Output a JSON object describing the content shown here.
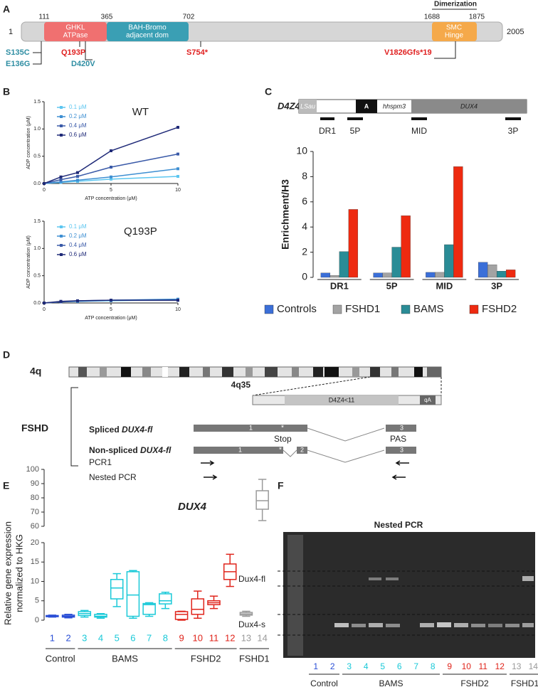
{
  "panels": [
    "A",
    "B",
    "C",
    "D",
    "E",
    "F"
  ],
  "protein": {
    "start": "1",
    "end": "2005",
    "positions": [
      "111",
      "365",
      "702",
      "1688",
      "1875"
    ],
    "dimerization": "Dimerization",
    "domains": [
      [
        "GHKL",
        "ATPase"
      ],
      [
        "BAH-Bromo",
        "adjacent dom"
      ],
      [
        "SMC",
        "Hinge"
      ]
    ],
    "mutations": [
      "S135C",
      "E136G",
      "Q193P",
      "D420V",
      "S754*",
      "V1826Gfs*19"
    ]
  },
  "d4z4": {
    "title": "D4Z4",
    "blocks": [
      "LSau",
      "A",
      "hhspm3",
      "DUX4"
    ],
    "probes": [
      "DR1",
      "5P",
      "MID",
      "3P"
    ]
  },
  "locus": {
    "chromosome": "4q",
    "band": "4q35",
    "repeat": "D4Z4<11",
    "allele": "qA",
    "condition": "FSHD",
    "spliced": [
      "Spliced",
      "DUX4-fl"
    ],
    "nonspliced": [
      "Non-spliced",
      "DUX4-fl"
    ],
    "exons": [
      "1",
      "*",
      "3",
      "1",
      "*",
      "2",
      "3"
    ],
    "stop": "Stop",
    "pas": "PAS",
    "pcr1": "PCR1",
    "nested": "Nested PCR"
  },
  "gel": {
    "title": "Nested PCR",
    "bands": [
      "Dux4-fl",
      "Dux4-s"
    ],
    "lanes": [
      "1",
      "2",
      "3",
      "4",
      "5",
      "6",
      "7",
      "8",
      "9",
      "10",
      "11",
      "12",
      "13",
      "14"
    ],
    "lane_colors": [
      "#2a4fd6",
      "#2a4fd6",
      "#19c9d8",
      "#19c9d8",
      "#19c9d8",
      "#19c9d8",
      "#19c9d8",
      "#19c9d8",
      "#e0241b",
      "#e0241b",
      "#e0241b",
      "#e0241b",
      "#9a9a9a",
      "#9a9a9a"
    ],
    "groups": [
      "Control",
      "BAMS",
      "FSHD2",
      "FSHD1"
    ]
  },
  "chart_data": [
    {
      "type": "line",
      "title": "WT",
      "xlabel": "ATP concentration (μM)",
      "ylabel": "ADP concentration (μM)",
      "legend": "upper left",
      "x": [
        0,
        1.25,
        2.5,
        5,
        10
      ],
      "xlim": [
        0,
        10
      ],
      "xticks": [
        0,
        5,
        10
      ],
      "ylim": [
        0,
        1.5
      ],
      "yticks": [
        {
          "value": 0,
          "label": "0.0"
        },
        {
          "value": 0.5,
          "label": "0.5"
        },
        {
          "value": 1,
          "label": "1.0"
        },
        {
          "value": 1.5,
          "label": "1.5"
        }
      ],
      "series": [
        {
          "name": "0.1 μM",
          "color": "#5cc6f0",
          "values": [
            0,
            0.02,
            0.04,
            0.08,
            0.13
          ]
        },
        {
          "name": "0.2 μM",
          "color": "#3e8fd2",
          "values": [
            0,
            0.03,
            0.06,
            0.12,
            0.27
          ]
        },
        {
          "name": "0.4 μM",
          "color": "#3a5aa8",
          "values": [
            0,
            0.07,
            0.13,
            0.3,
            0.54
          ]
        },
        {
          "name": "0.6 μM",
          "color": "#1f2a78",
          "values": [
            0,
            0.12,
            0.2,
            0.6,
            1.03
          ]
        }
      ]
    },
    {
      "type": "line",
      "title": "Q193P",
      "xlabel": "ATP concentration (μM)",
      "ylabel": "ADP concentration (μM)",
      "legend": "upper left",
      "x": [
        0,
        1.25,
        2.5,
        5,
        10
      ],
      "xlim": [
        0,
        10
      ],
      "xticks": [
        0,
        5,
        10
      ],
      "ylim": [
        0,
        1.5
      ],
      "yticks": [
        {
          "value": 0,
          "label": "0.0"
        },
        {
          "value": 0.5,
          "label": "0.5"
        },
        {
          "value": 1,
          "label": "1.0"
        },
        {
          "value": 1.5,
          "label": "1.5"
        }
      ],
      "series": [
        {
          "name": "0.1 μM",
          "color": "#5cc6f0",
          "values": [
            0,
            0.02,
            0.03,
            0.04,
            0.06
          ]
        },
        {
          "name": "0.2 μM",
          "color": "#3e8fd2",
          "values": [
            0,
            0.02,
            0.03,
            0.05,
            0.07
          ]
        },
        {
          "name": "0.4 μM",
          "color": "#3a5aa8",
          "values": [
            0,
            0.02,
            0.04,
            0.05,
            0.05
          ]
        },
        {
          "name": "0.6 μM",
          "color": "#1f2a78",
          "values": [
            0,
            0.03,
            0.04,
            0.05,
            0.05
          ]
        }
      ]
    },
    {
      "type": "bar",
      "ylabel": "Enrichment/H3",
      "categories": [
        "DR1",
        "5P",
        "MID",
        "3P"
      ],
      "ylim": [
        0,
        10
      ],
      "yticks": [
        0,
        2,
        4,
        6,
        8,
        10
      ],
      "legend": "bottom",
      "series": [
        {
          "name": "Controls",
          "color": "#3b6fd8",
          "values": [
            0.35,
            0.35,
            0.4,
            1.2
          ]
        },
        {
          "name": "FSHD1",
          "color": "#a3a3a3",
          "values": [
            0.15,
            0.35,
            0.4,
            1.0
          ]
        },
        {
          "name": "BAMS",
          "color": "#2a8c96",
          "values": [
            2.05,
            2.4,
            2.6,
            0.5
          ]
        },
        {
          "name": "FSHD2",
          "color": "#ee2a10",
          "values": [
            5.4,
            4.9,
            8.8,
            0.6
          ]
        }
      ]
    },
    {
      "type": "box",
      "title": "DUX4",
      "ylabel": [
        "Relative gene expression",
        "normalized to HKG"
      ],
      "categories": [
        "1",
        "2",
        "3",
        "4",
        "5",
        "6",
        "7",
        "8",
        "9",
        "10",
        "11",
        "12",
        "13",
        "14"
      ],
      "colors": [
        "#2a4fd6",
        "#2a4fd6",
        "#19c9d8",
        "#19c9d8",
        "#19c9d8",
        "#19c9d8",
        "#19c9d8",
        "#19c9d8",
        "#e0241b",
        "#e0241b",
        "#e0241b",
        "#e0241b",
        "#9a9a9a",
        "#9a9a9a"
      ],
      "groups": [
        "Control",
        "BAMS",
        "FSHD2",
        "FSHD1"
      ],
      "ylim": [
        0,
        100
      ],
      "axis_break": [
        20,
        60
      ],
      "yticks": [
        0,
        5,
        10,
        15,
        20,
        60,
        70,
        80,
        90,
        100
      ],
      "values": [
        {
          "min": 0.8,
          "q1": 0.9,
          "median": 1.0,
          "q3": 1.2,
          "max": 1.3
        },
        {
          "min": 0.6,
          "q1": 0.8,
          "median": 1.0,
          "q3": 1.3,
          "max": 1.5
        },
        {
          "min": 0.8,
          "q1": 1.2,
          "median": 1.7,
          "q3": 2.2,
          "max": 2.5
        },
        {
          "min": 0.5,
          "q1": 0.8,
          "median": 1.0,
          "q3": 1.5,
          "max": 1.7
        },
        {
          "min": 3.5,
          "q1": 5.5,
          "median": 8.3,
          "q3": 10.5,
          "max": 12
        },
        {
          "min": 0.5,
          "q1": 1.0,
          "median": 6.5,
          "q3": 12.5,
          "max": 12.8
        },
        {
          "min": 1.0,
          "q1": 1.5,
          "median": 4.0,
          "q3": 4.3,
          "max": 4.5
        },
        {
          "min": 3.0,
          "q1": 4.2,
          "median": 5.0,
          "q3": 6.8,
          "max": 7.2
        },
        {
          "min": 0,
          "q1": 0.2,
          "median": 1.5,
          "q3": 2.2,
          "max": 2.3
        },
        {
          "min": 0.5,
          "q1": 1.5,
          "median": 2.8,
          "q3": 5.5,
          "max": 7.5
        },
        {
          "min": 3.0,
          "q1": 4.0,
          "median": 4.5,
          "q3": 5.0,
          "max": 6.2
        },
        {
          "min": 8.7,
          "q1": 10.5,
          "median": 12.5,
          "q3": 14.5,
          "max": 17
        },
        {
          "min": 1.0,
          "q1": 1.3,
          "median": 1.6,
          "q3": 2.0,
          "max": 2.3
        },
        {
          "min": 64,
          "q1": 72,
          "median": 78,
          "q3": 85,
          "max": 93
        }
      ]
    }
  ]
}
